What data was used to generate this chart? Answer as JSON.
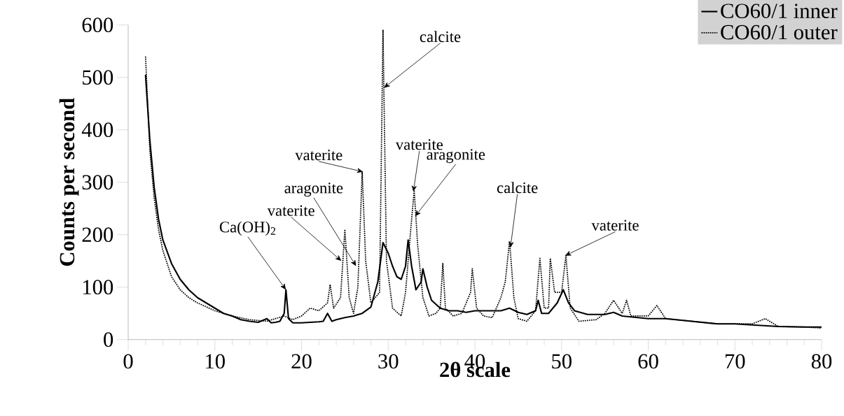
{
  "chart_data": {
    "type": "line",
    "xlabel": "2θ scale",
    "ylabel": "Counts per second",
    "xlim": [
      0,
      80
    ],
    "xticks": [
      0,
      10,
      20,
      30,
      40,
      50,
      60,
      70,
      80
    ],
    "ylim": [
      0,
      600
    ],
    "yticks": [
      0,
      100,
      200,
      300,
      400,
      500,
      600
    ],
    "grid": false,
    "legend": "top right",
    "marker": "none",
    "series": [
      {
        "name": "CO60/1 inner",
        "color": "#000000",
        "line_style": "solid",
        "x": [
          2,
          2.5,
          3,
          3.5,
          4,
          5,
          6,
          7,
          8,
          9,
          10,
          11,
          12,
          13,
          14,
          15,
          16,
          16.5,
          17,
          17.5,
          18,
          18.2,
          18.5,
          19,
          20,
          21,
          22,
          22.5,
          23,
          23.5,
          24,
          25,
          26,
          27,
          28,
          28.8,
          29.4,
          30,
          30.5,
          31,
          31.5,
          32,
          32.3,
          32.7,
          33.2,
          33.8,
          34,
          34.5,
          35,
          36,
          37,
          38,
          39,
          40,
          41,
          42,
          43,
          44,
          45,
          46,
          47,
          47.3,
          47.7,
          48.5,
          49.5,
          50.2,
          50.8,
          51.5,
          53,
          55,
          56,
          57,
          60,
          62,
          65,
          68,
          70,
          72,
          75,
          78,
          80
        ],
        "values": [
          505,
          380,
          290,
          230,
          190,
          145,
          115,
          95,
          80,
          70,
          60,
          50,
          45,
          38,
          35,
          33,
          40,
          32,
          33,
          35,
          50,
          95,
          40,
          32,
          32,
          33,
          34,
          35,
          50,
          35,
          38,
          42,
          45,
          50,
          62,
          110,
          185,
          165,
          140,
          120,
          115,
          140,
          190,
          140,
          95,
          110,
          135,
          100,
          75,
          60,
          55,
          55,
          52,
          55,
          55,
          55,
          55,
          60,
          52,
          48,
          55,
          75,
          50,
          50,
          70,
          95,
          70,
          55,
          48,
          48,
          52,
          45,
          40,
          40,
          35,
          30,
          30,
          28,
          25,
          24,
          24
        ]
      },
      {
        "name": "CO60/1 outer",
        "color": "#000000",
        "line_style": "dotted",
        "x": [
          2,
          2.5,
          3,
          3.5,
          4,
          5,
          6,
          7,
          8,
          10,
          12,
          14,
          16,
          18,
          19,
          20,
          21,
          22,
          23,
          23.3,
          23.7,
          24.5,
          25,
          25.5,
          26,
          26.5,
          27,
          27.4,
          28,
          29,
          29.4,
          29.8,
          30.5,
          31.5,
          32,
          32.6,
          33,
          33.4,
          34,
          34.7,
          35.5,
          36,
          36.3,
          36.6,
          37.5,
          38.5,
          39.5,
          39.7,
          40.2,
          41,
          42,
          43,
          43.5,
          44,
          44.5,
          45,
          46,
          47,
          47.5,
          48,
          48.5,
          48.7,
          49.2,
          50,
          50.5,
          51,
          52,
          54,
          55,
          56,
          57,
          57.5,
          58,
          60,
          61,
          62,
          65,
          68,
          72,
          73.5,
          75,
          78,
          80
        ],
        "values": [
          540,
          360,
          270,
          210,
          170,
          120,
          95,
          80,
          70,
          55,
          45,
          38,
          35,
          45,
          38,
          45,
          60,
          55,
          70,
          105,
          60,
          80,
          210,
          80,
          50,
          100,
          320,
          150,
          70,
          90,
          590,
          150,
          60,
          45,
          90,
          210,
          285,
          180,
          80,
          45,
          50,
          60,
          145,
          60,
          45,
          50,
          90,
          135,
          60,
          45,
          42,
          80,
          110,
          188,
          80,
          40,
          35,
          55,
          155,
          60,
          60,
          155,
          90,
          90,
          160,
          60,
          35,
          38,
          50,
          75,
          50,
          75,
          45,
          45,
          65,
          40,
          35,
          30,
          30,
          40,
          25,
          24,
          22
        ]
      }
    ],
    "annotations": [
      {
        "text": "Ca(OH)$_{2}$",
        "x": 18.2,
        "y": 95
      },
      {
        "text": "vaterite",
        "x": 24.6,
        "y": 150
      },
      {
        "text": "aragonite",
        "x": 26.3,
        "y": 140
      },
      {
        "text": "vaterite",
        "x": 27.1,
        "y": 320
      },
      {
        "text": "calcite",
        "x": 29.5,
        "y": 480
      },
      {
        "text": "vaterite",
        "x": 32.9,
        "y": 282
      },
      {
        "text": "aragonite",
        "x": 33.1,
        "y": 235
      },
      {
        "text": "calcite",
        "x": 44.1,
        "y": 175
      },
      {
        "text": "vaterite",
        "x": 50.4,
        "y": 160
      }
    ]
  }
}
